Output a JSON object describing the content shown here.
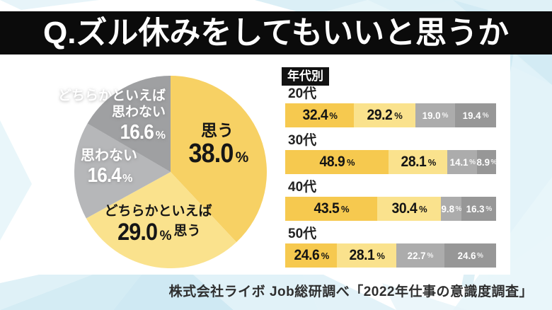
{
  "page": {
    "title": "Q.ズル休みをしてもいいと思うか",
    "source": "株式会社ライボ Job総研調べ「2022年仕事の意識度調査」"
  },
  "colors": {
    "banner_bg": "#0b0b0b",
    "banner_text": "#ffffff",
    "panel_bg": "#ffffff",
    "bg_accent_light": "#e4f3f8",
    "bg_accent_mid": "#cfe9f3",
    "bg_accent_deep": "#c3e4f0"
  },
  "chart_data": [
    {
      "type": "pie",
      "question": "Q.ズル休みをしてもいいと思うか",
      "unit": "%",
      "slices": [
        {
          "label": "思う",
          "label_lines": [
            "思う"
          ],
          "value": 38.0,
          "color": "#f7d164",
          "label_color": "#1a1a1a"
        },
        {
          "label": "どちらかといえば思う",
          "label_lines": [
            "どちらかといえば",
            "思う"
          ],
          "value": 29.0,
          "color": "#fae28d",
          "label_color": "#1a1a1a"
        },
        {
          "label": "思わない",
          "label_lines": [
            "思わない"
          ],
          "value": 16.4,
          "color": "#b6b7b9",
          "label_color": "#ffffff"
        },
        {
          "label": "どちらかといえば思わない",
          "label_lines": [
            "どちらかといえば",
            "思わない"
          ],
          "value": 16.6,
          "color": "#9fa0a2",
          "label_color": "#ffffff"
        }
      ]
    },
    {
      "type": "bar",
      "stacked": true,
      "title": "年代別",
      "unit": "%",
      "series_colors": [
        "#f6c94f",
        "#fae28d",
        "#acacac",
        "#979797"
      ],
      "categories": [
        "20代",
        "30代",
        "40代",
        "50代"
      ],
      "rows": [
        {
          "category": "20代",
          "values": [
            32.4,
            29.2,
            19.0,
            19.4
          ]
        },
        {
          "category": "30代",
          "values": [
            48.9,
            28.1,
            14.1,
            8.9
          ]
        },
        {
          "category": "40代",
          "values": [
            43.5,
            30.4,
            9.8,
            16.3
          ]
        },
        {
          "category": "50代",
          "values": [
            24.6,
            28.1,
            22.7,
            24.6
          ]
        }
      ]
    }
  ]
}
